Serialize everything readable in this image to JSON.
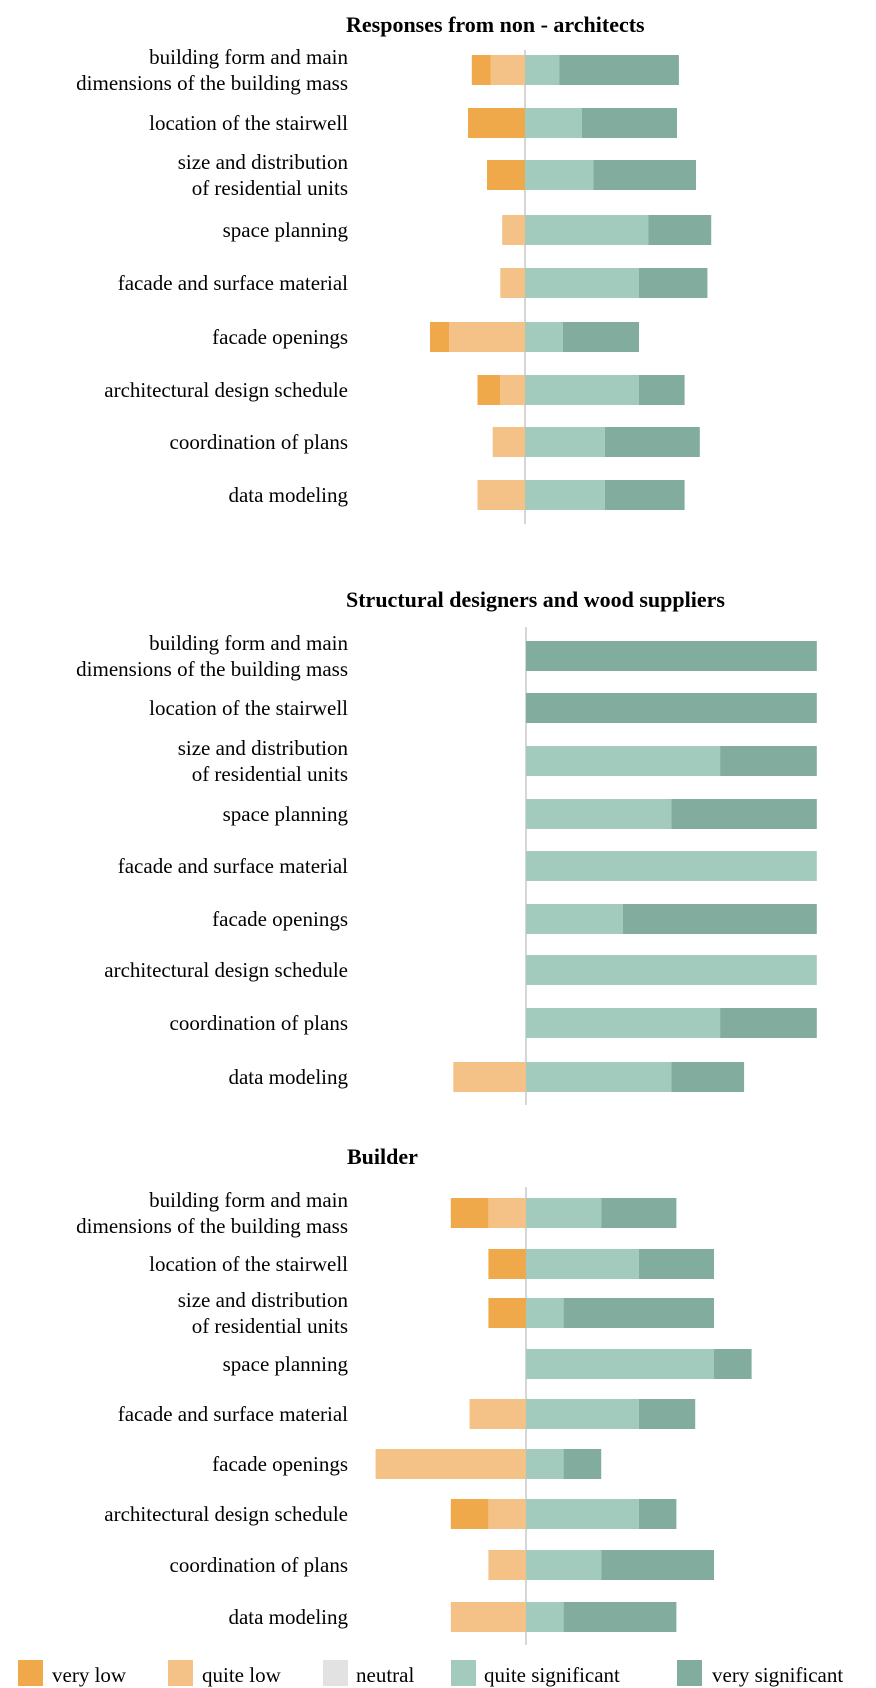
{
  "colors": {
    "very_low": "#F0A94A",
    "quite_low": "#F4C286",
    "neutral": "#E2E2E2",
    "quite_significant": "#A3CBBD",
    "very_significant": "#82AD9E",
    "axis": "#C8C8C8"
  },
  "legend": [
    {
      "key": "very_low",
      "label": "very low"
    },
    {
      "key": "quite_low",
      "label": "quite low"
    },
    {
      "key": "neutral",
      "label": "neutral"
    },
    {
      "key": "quite_significant",
      "label": "quite significant"
    },
    {
      "key": "very_significant",
      "label": "very significant"
    }
  ],
  "chart_data": [
    {
      "type": "bar",
      "orientation": "horizontal",
      "stacked": "diverging",
      "title": "Responses from non - architects",
      "categories": [
        "building form and main\ndimensions of the building mass",
        "location of the stairwell",
        "size and distribution\nof residential units",
        "space planning",
        "facade and surface material",
        "facade openings",
        "architectural design schedule",
        "coordination of plans",
        "data modeling"
      ],
      "series": [
        {
          "name": "very low",
          "values": [
            1,
            3,
            2,
            0,
            0,
            1,
            1.2,
            0,
            0
          ]
        },
        {
          "name": "quite low",
          "values": [
            1.8,
            0,
            0,
            1.2,
            1.3,
            4,
            1.3,
            1.7,
            2.5
          ]
        },
        {
          "name": "neutral",
          "values": [
            0,
            0,
            0,
            0,
            0,
            0,
            0,
            0,
            0
          ]
        },
        {
          "name": "quite significant",
          "values": [
            1.8,
            3,
            3.6,
            6.5,
            6,
            2,
            6,
            4.2,
            4.2
          ]
        },
        {
          "name": "very significant",
          "values": [
            6.3,
            5,
            5.4,
            3.3,
            3.6,
            4,
            2.4,
            5,
            4.2
          ]
        }
      ]
    },
    {
      "type": "bar",
      "orientation": "horizontal",
      "stacked": "diverging",
      "title": "Structural designers and wood suppliers",
      "categories": [
        "building form and main\ndimensions of the building mass",
        "location of the stairwell",
        "size and distribution\nof residential units",
        "space planning",
        "facade and surface material",
        "facade openings",
        "architectural design schedule",
        "coordination of plans",
        "data modeling"
      ],
      "series": [
        {
          "name": "very low",
          "values": [
            0,
            0,
            0,
            0,
            0,
            0,
            0,
            0,
            0
          ]
        },
        {
          "name": "quite low",
          "values": [
            0,
            0,
            0,
            0,
            0,
            0,
            0,
            0,
            1
          ]
        },
        {
          "name": "neutral",
          "values": [
            0,
            0,
            0,
            0,
            0,
            0,
            0,
            0,
            0
          ]
        },
        {
          "name": "quite significant",
          "values": [
            0,
            0,
            2.67,
            2,
            4,
            1.33,
            4,
            2.67,
            2
          ]
        },
        {
          "name": "very significant",
          "values": [
            4,
            4,
            1.33,
            2,
            0,
            2.67,
            0,
            1.33,
            1
          ]
        }
      ]
    },
    {
      "type": "bar",
      "orientation": "horizontal",
      "stacked": "diverging",
      "title": "Builder",
      "categories": [
        "building form and main\ndimensions of the building mass",
        "location of the stairwell",
        "size and distribution\nof residential units",
        "space planning",
        "facade and surface material",
        "facade openings",
        "architectural design schedule",
        "coordination of plans",
        "data modeling"
      ],
      "series": [
        {
          "name": "very low",
          "values": [
            1,
            1,
            1,
            0,
            0,
            0,
            1,
            0,
            0
          ]
        },
        {
          "name": "quite low",
          "values": [
            1,
            0,
            0,
            0,
            1.5,
            4,
            1,
            1,
            2
          ]
        },
        {
          "name": "neutral",
          "values": [
            0,
            0,
            0,
            0,
            0,
            0,
            0,
            0,
            0
          ]
        },
        {
          "name": "quite significant",
          "values": [
            2,
            3,
            1,
            5,
            3,
            1,
            3,
            2,
            1
          ]
        },
        {
          "name": "very significant",
          "values": [
            2,
            2,
            4,
            1,
            1.5,
            1,
            1,
            3,
            3
          ]
        }
      ]
    }
  ]
}
